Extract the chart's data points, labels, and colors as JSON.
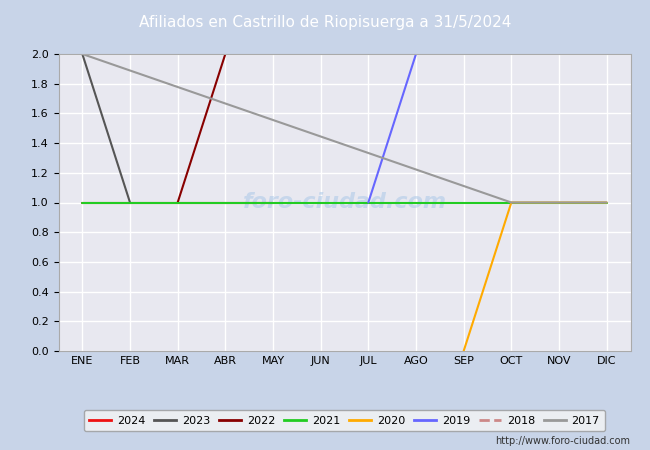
{
  "title": "Afiliados en Castrillo de Riopisuerga a 31/5/2024",
  "title_bg_color": "#4a6fa5",
  "title_text_color": "#ffffff",
  "months": [
    "ENE",
    "FEB",
    "MAR",
    "ABR",
    "MAY",
    "JUN",
    "JUL",
    "AGO",
    "SEP",
    "OCT",
    "NOV",
    "DIC"
  ],
  "ylim": [
    0.0,
    2.0
  ],
  "yticks": [
    0.0,
    0.2,
    0.4,
    0.6,
    0.8,
    1.0,
    1.2,
    1.4,
    1.6,
    1.8,
    2.0
  ],
  "plot_bg_color": "#e8e8f0",
  "grid_color": "#ffffff",
  "series": [
    {
      "year": "2024",
      "color": "#ee1111",
      "data": [
        [
          1,
          1
        ],
        [
          2,
          1
        ],
        [
          3,
          1
        ],
        [
          4,
          1
        ],
        [
          5,
          1
        ]
      ]
    },
    {
      "year": "2023",
      "color": "#555555",
      "data": [
        [
          1,
          2
        ],
        [
          2,
          1
        ]
      ]
    },
    {
      "year": "2022",
      "color": "#880000",
      "data": [
        [
          3,
          1
        ],
        [
          4,
          2
        ]
      ]
    },
    {
      "year": "2021",
      "color": "#22cc22",
      "data": [
        [
          1,
          1
        ],
        [
          2,
          1
        ],
        [
          3,
          1
        ],
        [
          4,
          1
        ],
        [
          5,
          1
        ],
        [
          6,
          1
        ],
        [
          7,
          1
        ],
        [
          8,
          1
        ],
        [
          9,
          1
        ],
        [
          10,
          1
        ],
        [
          11,
          1
        ],
        [
          12,
          1
        ]
      ]
    },
    {
      "year": "2020",
      "color": "#ffaa00",
      "data": [
        [
          9,
          0
        ],
        [
          10,
          1
        ],
        [
          11,
          1
        ],
        [
          12,
          1
        ]
      ]
    },
    {
      "year": "2019",
      "color": "#6666ff",
      "data": [
        [
          7,
          1
        ],
        [
          8,
          2
        ]
      ]
    },
    {
      "year": "2018",
      "color": "#cc8888",
      "data": []
    },
    {
      "year": "2017",
      "color": "#999999",
      "data": [
        [
          1,
          2
        ],
        [
          10,
          1
        ],
        [
          11,
          1
        ],
        [
          12,
          1
        ]
      ]
    }
  ],
  "legend_bg": "#f5f5f5",
  "legend_border": "#999999",
  "url_text": "http://www.foro-ciudad.com",
  "outer_bg_color": "#c8d4e8",
  "fig_width": 6.5,
  "fig_height": 4.5,
  "dpi": 100
}
